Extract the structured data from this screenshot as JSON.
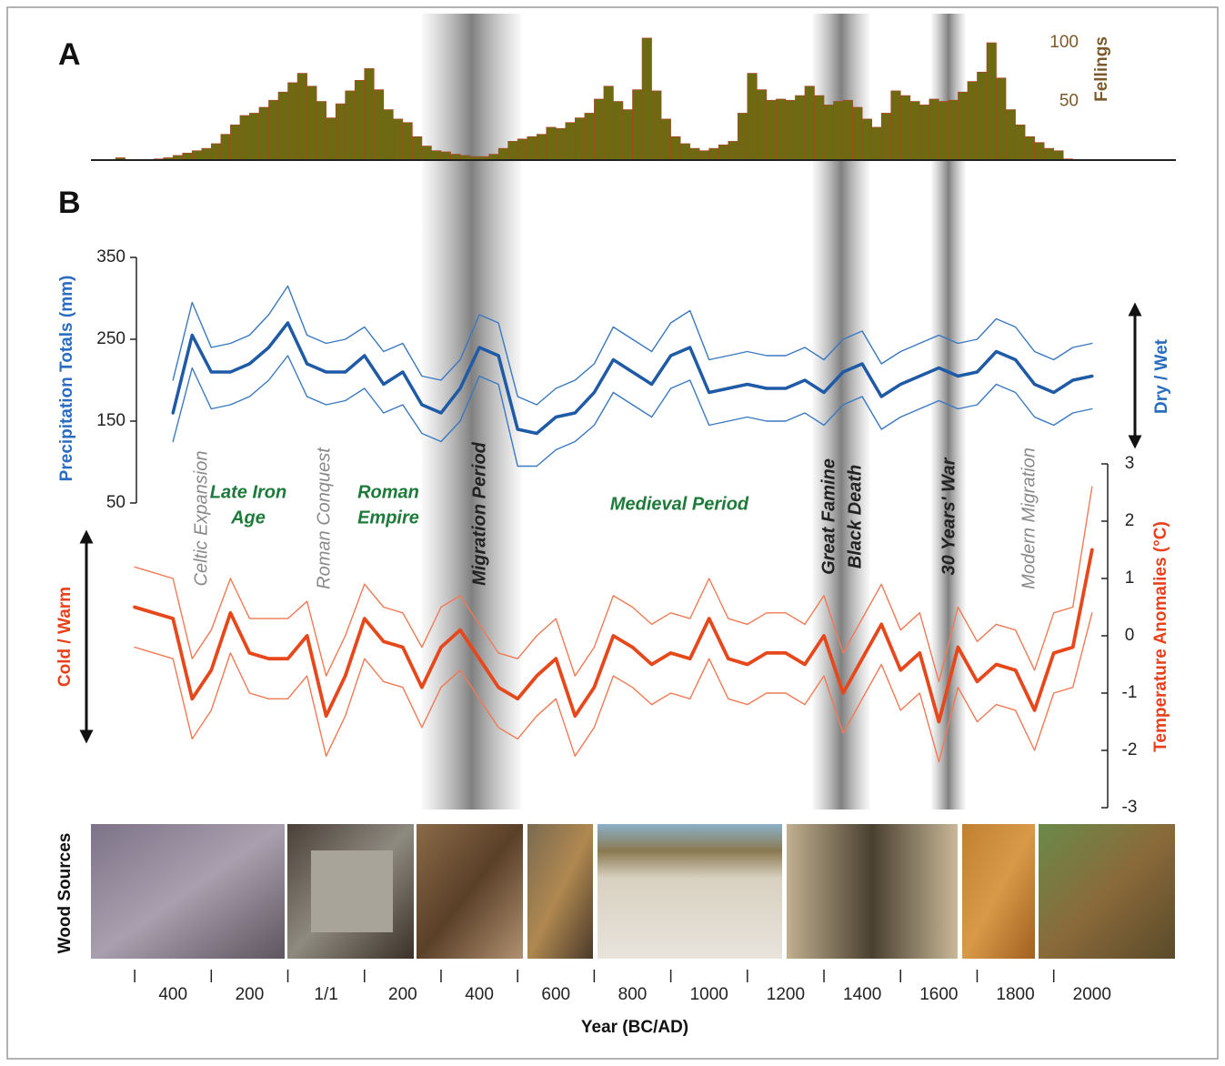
{
  "chart_data": [
    {
      "type": "histogram",
      "panel": "A",
      "ylabel": "Fellings",
      "color": "#6e6a12",
      "edge_color": "#b0402a",
      "xlim": [
        -600,
        2200
      ],
      "ylim": [
        0,
        100
      ],
      "yticks": [
        50,
        100
      ],
      "bins": [
        -550,
        -525,
        -500,
        -475,
        -450,
        -425,
        -400,
        -375,
        -350,
        -325,
        -300,
        -275,
        -250,
        -225,
        -200,
        -175,
        -150,
        -125,
        -100,
        -75,
        -50,
        -25,
        0,
        25,
        50,
        75,
        100,
        125,
        150,
        175,
        200,
        225,
        250,
        275,
        300,
        325,
        350,
        375,
        400,
        425,
        450,
        475,
        500,
        525,
        550,
        575,
        600,
        625,
        650,
        675,
        700,
        725,
        750,
        775,
        800,
        825,
        850,
        875,
        900,
        925,
        950,
        975,
        1000,
        1025,
        1050,
        1075,
        1100,
        1125,
        1150,
        1175,
        1200,
        1225,
        1250,
        1275,
        1300,
        1325,
        1350,
        1375,
        1400,
        1425,
        1450,
        1475,
        1500,
        1525,
        1550,
        1575,
        1600,
        1625,
        1650,
        1675,
        1700,
        1725,
        1750,
        1775,
        1800,
        1825,
        1850,
        1875,
        1900,
        1925,
        1950
      ],
      "values": [
        2,
        0,
        0,
        0,
        1,
        2,
        4,
        6,
        8,
        10,
        14,
        22,
        30,
        38,
        40,
        45,
        51,
        58,
        66,
        74,
        63,
        50,
        36,
        48,
        59,
        68,
        78,
        60,
        43,
        35,
        32,
        20,
        12,
        8,
        7,
        5,
        4,
        3,
        3,
        5,
        10,
        16,
        18,
        20,
        22,
        28,
        27,
        32,
        36,
        40,
        52,
        63,
        50,
        43,
        60,
        104,
        59,
        35,
        20,
        14,
        10,
        8,
        10,
        13,
        16,
        40,
        74,
        60,
        51,
        52,
        51,
        55,
        63,
        55,
        47,
        50,
        51,
        45,
        35,
        28,
        40,
        59,
        55,
        50,
        47,
        52,
        50,
        51,
        58,
        67,
        75,
        100,
        70,
        43,
        30,
        20,
        15,
        10,
        8,
        1
      ]
    },
    {
      "type": "line",
      "panel": "B",
      "xlabel": "Year (BC/AD)",
      "ylabel": "Precipitation Totals (mm)",
      "ylabel_arrow": "Dry / Wet",
      "y2label": "Temperature Anomalies (°C)",
      "y2label_arrow": "Cold / Warm",
      "xlim": [
        -600,
        2200
      ],
      "xticks": [
        {
          "value": -400,
          "label": "400"
        },
        {
          "value": -200,
          "label": "200"
        },
        {
          "value": 0,
          "label": "1/1"
        },
        200,
        400,
        600,
        800,
        1000,
        1200,
        1400,
        1600,
        1800,
        2000
      ],
      "xminorticks": [
        -500,
        -300,
        -100,
        100,
        300,
        500,
        700,
        900,
        1100,
        1300,
        1500,
        1700,
        1900
      ],
      "ylim": [
        50,
        350
      ],
      "yticks": [
        50,
        150,
        250,
        350
      ],
      "y2lim": [
        -3,
        3
      ],
      "y2ticks": [
        3,
        2,
        1,
        0,
        -1,
        -2,
        -3
      ],
      "shaded_periods": [
        {
          "start": 250,
          "end": 510
        },
        {
          "start": 1270,
          "end": 1420
        },
        {
          "start": 1580,
          "end": 1670
        }
      ],
      "series": [
        {
          "color": "#3a78c0",
          "width": 1.4,
          "x": [
            -400,
            -350,
            -300,
            -250,
            -200,
            -150,
            -100,
            -50,
            0,
            50,
            100,
            150,
            200,
            250,
            300,
            350,
            400,
            450,
            500,
            550,
            600,
            650,
            700,
            750,
            800,
            850,
            900,
            950,
            1000,
            1050,
            1100,
            1150,
            1200,
            1250,
            1300,
            1350,
            1400,
            1450,
            1500,
            1550,
            1600,
            1650,
            1700,
            1750,
            1800,
            1850,
            1900,
            1950,
            2000
          ],
          "values": [
            200,
            295,
            240,
            245,
            255,
            280,
            315,
            255,
            245,
            250,
            265,
            235,
            245,
            205,
            200,
            225,
            280,
            270,
            180,
            170,
            190,
            200,
            220,
            265,
            250,
            235,
            270,
            285,
            225,
            230,
            235,
            230,
            230,
            240,
            225,
            250,
            260,
            220,
            235,
            245,
            255,
            245,
            250,
            275,
            265,
            235,
            225,
            240,
            245
          ]
        },
        {
          "color": "#3a78c0",
          "width": 1.4,
          "x": [
            -400,
            -350,
            -300,
            -250,
            -200,
            -150,
            -100,
            -50,
            0,
            50,
            100,
            150,
            200,
            250,
            300,
            350,
            400,
            450,
            500,
            550,
            600,
            650,
            700,
            750,
            800,
            850,
            900,
            950,
            1000,
            1050,
            1100,
            1150,
            1200,
            1250,
            1300,
            1350,
            1400,
            1450,
            1500,
            1550,
            1600,
            1650,
            1700,
            1750,
            1800,
            1850,
            1900,
            1950,
            2000
          ],
          "values": [
            125,
            215,
            165,
            170,
            180,
            200,
            230,
            180,
            170,
            175,
            190,
            160,
            170,
            135,
            125,
            150,
            205,
            195,
            95,
            95,
            115,
            125,
            145,
            185,
            170,
            155,
            190,
            200,
            145,
            150,
            155,
            150,
            150,
            160,
            145,
            170,
            180,
            140,
            155,
            165,
            175,
            165,
            170,
            195,
            185,
            155,
            145,
            160,
            165
          ]
        },
        {
          "color": "#1f5aa6",
          "width": 3.5,
          "x": [
            -400,
            -350,
            -300,
            -250,
            -200,
            -150,
            -100,
            -50,
            0,
            50,
            100,
            150,
            200,
            250,
            300,
            350,
            400,
            450,
            500,
            550,
            600,
            650,
            700,
            750,
            800,
            850,
            900,
            950,
            1000,
            1050,
            1100,
            1150,
            1200,
            1250,
            1300,
            1350,
            1400,
            1450,
            1500,
            1550,
            1600,
            1650,
            1700,
            1750,
            1800,
            1850,
            1900,
            1950,
            2000
          ],
          "values": [
            160,
            255,
            210,
            210,
            220,
            240,
            270,
            220,
            210,
            210,
            230,
            195,
            210,
            170,
            160,
            190,
            240,
            230,
            140,
            135,
            155,
            160,
            185,
            225,
            210,
            195,
            230,
            240,
            185,
            190,
            195,
            190,
            190,
            200,
            185,
            210,
            220,
            180,
            195,
            205,
            215,
            205,
            210,
            235,
            225,
            195,
            185,
            200,
            205
          ]
        },
        {
          "color": "#f07a55",
          "width": 1.4,
          "axis": "y2",
          "x": [
            -500,
            -450,
            -400,
            -350,
            -300,
            -250,
            -200,
            -150,
            -100,
            -50,
            0,
            50,
            100,
            150,
            200,
            250,
            300,
            350,
            400,
            450,
            500,
            550,
            600,
            650,
            700,
            750,
            800,
            850,
            900,
            950,
            1000,
            1050,
            1100,
            1150,
            1200,
            1250,
            1300,
            1350,
            1400,
            1450,
            1500,
            1550,
            1600,
            1650,
            1700,
            1750,
            1800,
            1850,
            1900,
            1950,
            2000
          ],
          "values": [
            1.2,
            1.1,
            1.0,
            -0.4,
            0.1,
            1.0,
            0.3,
            0.3,
            0.3,
            0.6,
            -0.7,
            0.0,
            0.9,
            0.5,
            0.4,
            -0.2,
            0.5,
            0.7,
            0.2,
            -0.3,
            -0.4,
            0.0,
            0.3,
            -0.7,
            -0.2,
            0.7,
            0.5,
            0.2,
            0.4,
            0.3,
            1.0,
            0.3,
            0.2,
            0.4,
            0.4,
            0.2,
            0.7,
            -0.3,
            0.3,
            0.9,
            0.1,
            0.4,
            -0.8,
            0.5,
            -0.1,
            0.2,
            0.1,
            -0.6,
            0.4,
            0.5,
            2.6
          ]
        },
        {
          "color": "#f07a55",
          "width": 1.4,
          "axis": "y2",
          "x": [
            -500,
            -450,
            -400,
            -350,
            -300,
            -250,
            -200,
            -150,
            -100,
            -50,
            0,
            50,
            100,
            150,
            200,
            250,
            300,
            350,
            400,
            450,
            500,
            550,
            600,
            650,
            700,
            750,
            800,
            850,
            900,
            950,
            1000,
            1050,
            1100,
            1150,
            1200,
            1250,
            1300,
            1350,
            1400,
            1450,
            1500,
            1550,
            1600,
            1650,
            1700,
            1750,
            1800,
            1850,
            1900,
            1950,
            2000
          ],
          "values": [
            -0.2,
            -0.3,
            -0.4,
            -1.8,
            -1.3,
            -0.3,
            -1.0,
            -1.1,
            -1.1,
            -0.7,
            -2.1,
            -1.4,
            -0.4,
            -0.8,
            -0.9,
            -1.6,
            -0.9,
            -0.6,
            -1.1,
            -1.6,
            -1.8,
            -1.4,
            -1.1,
            -2.1,
            -1.6,
            -0.7,
            -0.9,
            -1.2,
            -1.0,
            -1.1,
            -0.4,
            -1.1,
            -1.2,
            -1.0,
            -1.0,
            -1.2,
            -0.7,
            -1.7,
            -1.1,
            -0.5,
            -1.3,
            -1.0,
            -2.2,
            -0.9,
            -1.5,
            -1.2,
            -1.3,
            -2.0,
            -1.0,
            -0.9,
            0.4
          ]
        },
        {
          "color": "#e6481c",
          "width": 3.8,
          "axis": "y2",
          "x": [
            -500,
            -450,
            -400,
            -350,
            -300,
            -250,
            -200,
            -150,
            -100,
            -50,
            0,
            50,
            100,
            150,
            200,
            250,
            300,
            350,
            400,
            450,
            500,
            550,
            600,
            650,
            700,
            750,
            800,
            850,
            900,
            950,
            1000,
            1050,
            1100,
            1150,
            1200,
            1250,
            1300,
            1350,
            1400,
            1450,
            1500,
            1550,
            1600,
            1650,
            1700,
            1750,
            1800,
            1850,
            1900,
            1950,
            2000
          ],
          "values": [
            0.5,
            0.4,
            0.3,
            -1.1,
            -0.6,
            0.4,
            -0.3,
            -0.4,
            -0.4,
            0.0,
            -1.4,
            -0.7,
            0.3,
            -0.1,
            -0.2,
            -0.9,
            -0.2,
            0.1,
            -0.4,
            -0.9,
            -1.1,
            -0.7,
            -0.4,
            -1.4,
            -0.9,
            0.0,
            -0.2,
            -0.5,
            -0.3,
            -0.4,
            0.3,
            -0.4,
            -0.5,
            -0.3,
            -0.3,
            -0.5,
            0.0,
            -1.0,
            -0.4,
            0.2,
            -0.6,
            -0.3,
            -1.5,
            -0.2,
            -0.8,
            -0.5,
            -0.6,
            -1.3,
            -0.3,
            -0.2,
            1.5
          ]
        }
      ],
      "annotations": [
        {
          "lines": [
            "Celtic Expansion"
          ],
          "style": "minor"
        },
        {
          "lines": [
            "Late Iron",
            "Age"
          ],
          "style": "era"
        },
        {
          "lines": [
            "Roman Conquest"
          ],
          "style": "minor"
        },
        {
          "lines": [
            "Roman",
            "Empire"
          ],
          "style": "era"
        },
        {
          "lines": [
            "Migration Period"
          ],
          "style": "event"
        },
        {
          "lines": [
            "Medieval Period"
          ],
          "style": "era"
        },
        {
          "lines": [
            "Great Famine"
          ],
          "style": "event"
        },
        {
          "lines": [
            "Black Death"
          ],
          "style": "event"
        },
        {
          "lines": [
            "30 Years' War"
          ],
          "style": "event"
        },
        {
          "lines": [
            "Modern Migration"
          ],
          "style": "minor"
        }
      ]
    }
  ],
  "wood_sources": {
    "label": "Wood Sources"
  }
}
